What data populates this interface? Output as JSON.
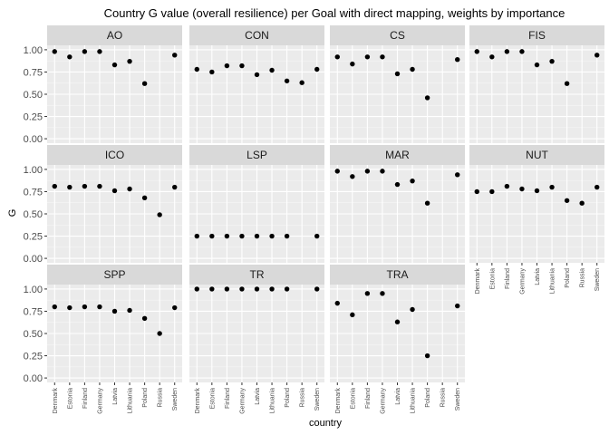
{
  "chart_data": {
    "type": "scatter",
    "title": "Country G value (overall resilience) per Goal with direct mapping, weights by importance",
    "xlabel": "country",
    "ylabel": "G",
    "ylim": [
      -0.05,
      1.05
    ],
    "yticks": [
      "0.00",
      "0.25",
      "0.50",
      "0.75",
      "1.00"
    ],
    "categories": [
      "Denmark",
      "Estonia",
      "Finland",
      "Germany",
      "Latvia",
      "Lithuania",
      "Poland",
      "Russia",
      "Sweden"
    ],
    "grid": true,
    "facet_cols": 4,
    "point_color": "#000000",
    "panel_background": "#ebebeb",
    "strip_background": "#d9d9d9",
    "panels": [
      {
        "name": "AO",
        "values": [
          0.98,
          0.92,
          0.98,
          0.98,
          0.83,
          0.87,
          0.62,
          null,
          0.94
        ]
      },
      {
        "name": "CON",
        "values": [
          0.78,
          0.75,
          0.82,
          0.82,
          0.72,
          0.77,
          0.65,
          0.63,
          0.78
        ]
      },
      {
        "name": "CS",
        "values": [
          0.92,
          0.84,
          0.92,
          0.92,
          0.73,
          0.78,
          0.46,
          null,
          0.89
        ]
      },
      {
        "name": "FIS",
        "values": [
          0.98,
          0.92,
          0.98,
          0.98,
          0.83,
          0.87,
          0.62,
          null,
          0.94
        ]
      },
      {
        "name": "ICO",
        "values": [
          0.81,
          0.8,
          0.81,
          0.81,
          0.76,
          0.78,
          0.68,
          0.49,
          0.8
        ]
      },
      {
        "name": "LSP",
        "values": [
          0.25,
          0.25,
          0.25,
          0.25,
          0.25,
          0.25,
          0.25,
          null,
          0.25
        ]
      },
      {
        "name": "MAR",
        "values": [
          0.98,
          0.92,
          0.98,
          0.98,
          0.83,
          0.87,
          0.62,
          null,
          0.94
        ]
      },
      {
        "name": "NUT",
        "values": [
          0.75,
          0.75,
          0.81,
          0.78,
          0.76,
          0.8,
          0.65,
          0.62,
          0.8
        ]
      },
      {
        "name": "SPP",
        "values": [
          0.8,
          0.79,
          0.8,
          0.8,
          0.75,
          0.76,
          0.67,
          0.5,
          0.79
        ]
      },
      {
        "name": "TR",
        "values": [
          1.0,
          1.0,
          1.0,
          1.0,
          1.0,
          1.0,
          1.0,
          null,
          1.0
        ]
      },
      {
        "name": "TRA",
        "values": [
          0.84,
          0.71,
          0.95,
          0.95,
          0.63,
          0.77,
          0.25,
          null,
          0.81
        ]
      }
    ]
  }
}
